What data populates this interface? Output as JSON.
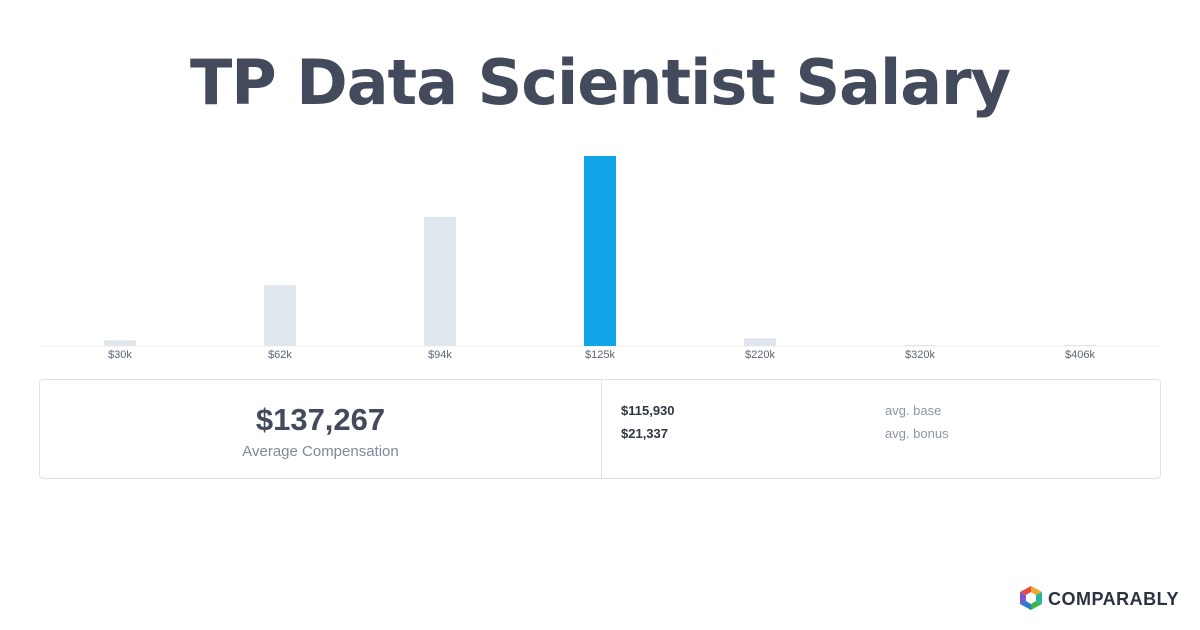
{
  "title": "TP Data Scientist Salary",
  "chart_data": {
    "type": "bar",
    "categories": [
      "$30k",
      "$62k",
      "$94k",
      "$125k",
      "$220k",
      "$320k",
      "$406k"
    ],
    "values": [
      3,
      32,
      68,
      100,
      4,
      0.5,
      0.5
    ],
    "highlight_index": 3,
    "highlight_color": "#12a5e8",
    "bar_color": "#e0e6ed",
    "title": "",
    "xlabel": "",
    "ylabel": ""
  },
  "summary": {
    "average_value": "$137,267",
    "average_label": "Average Compensation",
    "rows": [
      {
        "amount": "$115,930",
        "label": "avg. base"
      },
      {
        "amount": "$21,337",
        "label": "avg. bonus"
      }
    ]
  },
  "brand": {
    "name": "COMPARABLY",
    "icon": "comparably-logo-icon"
  }
}
